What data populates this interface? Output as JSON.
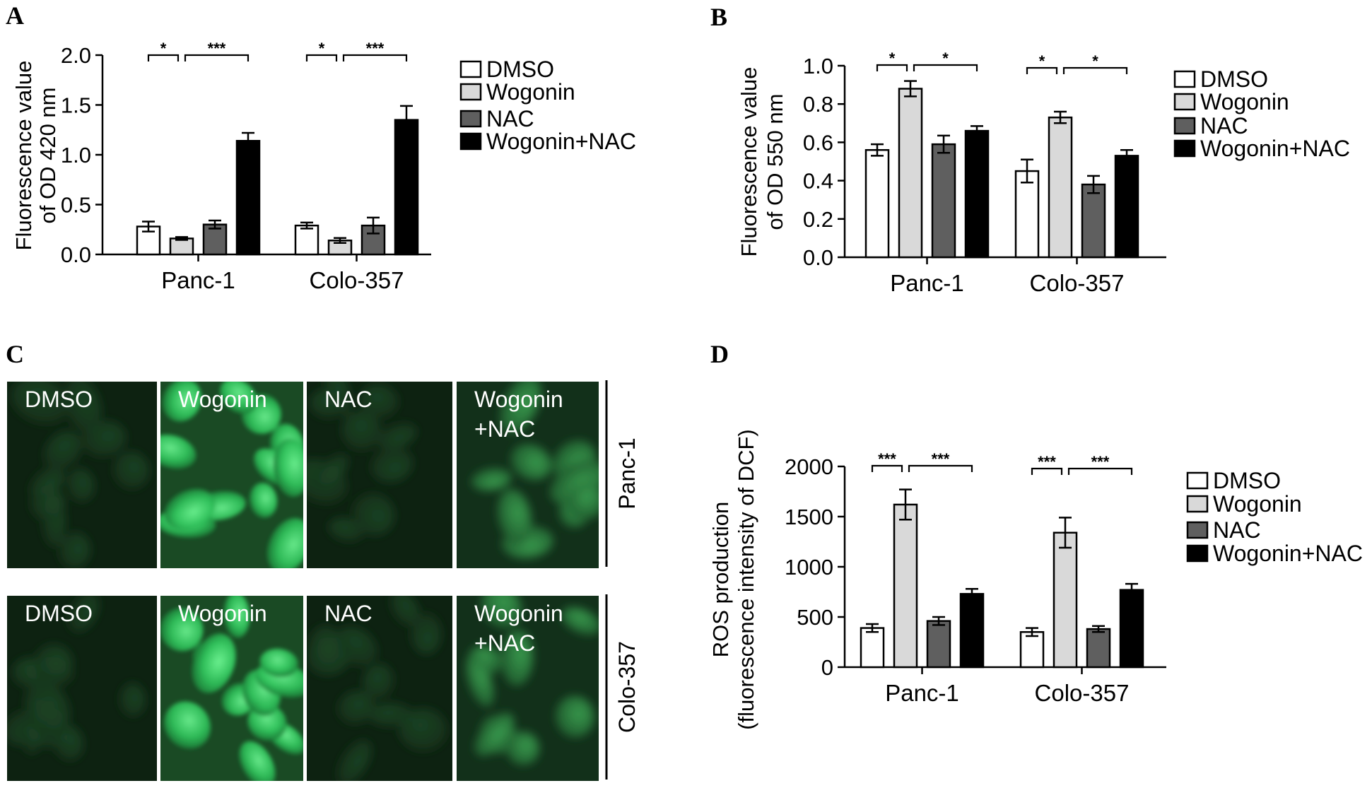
{
  "panels": {
    "a": "A",
    "b": "B",
    "c": "C",
    "d": "D"
  },
  "colors": {
    "DMSO": "#ffffff",
    "Wogonin": "#d9d9d9",
    "NAC": "#5f5f5f",
    "Wogonin+NAC": "#000000",
    "micrograph_dark": "#0c1e0e",
    "micrograph_cell": "#3ecf6a"
  },
  "chart_data": [
    {
      "id": "A",
      "type": "bar",
      "categories": [
        "Panc-1",
        "Colo-357"
      ],
      "series": [
        {
          "name": "DMSO",
          "values": [
            0.28,
            0.29
          ],
          "errors": [
            0.05,
            0.03
          ]
        },
        {
          "name": "Wogonin",
          "values": [
            0.16,
            0.14
          ],
          "errors": [
            0.015,
            0.025
          ]
        },
        {
          "name": "NAC",
          "values": [
            0.3,
            0.29
          ],
          "errors": [
            0.04,
            0.08
          ]
        },
        {
          "name": "Wogonin+NAC",
          "values": [
            1.14,
            1.35
          ],
          "errors": [
            0.08,
            0.14
          ]
        }
      ],
      "ylabel": [
        "Fluorescence value",
        "of OD 420 nm"
      ],
      "ylim": [
        0,
        2.0
      ],
      "yticks": [
        "0.0",
        "0.5",
        "1.0",
        "1.5",
        "2.0"
      ],
      "grid": false,
      "legend_position": "right",
      "significance": [
        {
          "category": 0,
          "from": 0,
          "to": 1,
          "label": "*"
        },
        {
          "category": 0,
          "from": 1,
          "to": 3,
          "label": "***"
        },
        {
          "category": 1,
          "from": 0,
          "to": 1,
          "label": "*"
        },
        {
          "category": 1,
          "from": 1,
          "to": 3,
          "label": "***"
        }
      ]
    },
    {
      "id": "B",
      "type": "bar",
      "categories": [
        "Panc-1",
        "Colo-357"
      ],
      "series": [
        {
          "name": "DMSO",
          "values": [
            0.56,
            0.45
          ],
          "errors": [
            0.03,
            0.06
          ]
        },
        {
          "name": "Wogonin",
          "values": [
            0.88,
            0.73
          ],
          "errors": [
            0.04,
            0.03
          ]
        },
        {
          "name": "NAC",
          "values": [
            0.59,
            0.38
          ],
          "errors": [
            0.045,
            0.045
          ]
        },
        {
          "name": "Wogonin+NAC",
          "values": [
            0.66,
            0.53
          ],
          "errors": [
            0.025,
            0.03
          ]
        }
      ],
      "ylabel": [
        "Fluorescence value",
        "of OD 550 nm"
      ],
      "ylim": [
        0,
        1.0
      ],
      "yticks": [
        "0.0",
        "0.2",
        "0.4",
        "0.6",
        "0.8",
        "1.0"
      ],
      "grid": false,
      "legend_position": "right",
      "significance": [
        {
          "category": 0,
          "from": 0,
          "to": 1,
          "label": "*"
        },
        {
          "category": 0,
          "from": 1,
          "to": 3,
          "label": "*"
        },
        {
          "category": 1,
          "from": 0,
          "to": 1,
          "label": "*"
        },
        {
          "category": 1,
          "from": 1,
          "to": 3,
          "label": "*"
        }
      ]
    },
    {
      "id": "D",
      "type": "bar",
      "categories": [
        "Panc-1",
        "Colo-357"
      ],
      "series": [
        {
          "name": "DMSO",
          "values": [
            390,
            350
          ],
          "errors": [
            40,
            40
          ]
        },
        {
          "name": "Wogonin",
          "values": [
            1620,
            1340
          ],
          "errors": [
            150,
            150
          ]
        },
        {
          "name": "NAC",
          "values": [
            460,
            380
          ],
          "errors": [
            40,
            30
          ]
        },
        {
          "name": "Wogonin+NAC",
          "values": [
            730,
            770
          ],
          "errors": [
            50,
            60
          ]
        }
      ],
      "ylabel": [
        "ROS production",
        "(fluorescence intensity of DCF)"
      ],
      "ylim": [
        0,
        2000
      ],
      "yticks": [
        "0",
        "500",
        "1000",
        "1500",
        "2000"
      ],
      "grid": false,
      "legend_position": "right",
      "significance": [
        {
          "category": 0,
          "from": 0,
          "to": 1,
          "label": "***"
        },
        {
          "category": 0,
          "from": 1,
          "to": 3,
          "label": "***"
        },
        {
          "category": 1,
          "from": 0,
          "to": 1,
          "label": "***"
        },
        {
          "category": 1,
          "from": 1,
          "to": 3,
          "label": "***"
        }
      ]
    }
  ],
  "micrographs": {
    "rows": [
      {
        "cell_line": "Panc-1",
        "tiles": [
          {
            "label": [
              "DMSO"
            ],
            "brightness": "dim"
          },
          {
            "label": [
              "Wogonin"
            ],
            "brightness": "bright"
          },
          {
            "label": [
              "NAC"
            ],
            "brightness": "dim"
          },
          {
            "label": [
              "Wogonin",
              "+NAC"
            ],
            "brightness": "medium"
          }
        ]
      },
      {
        "cell_line": "Colo-357",
        "tiles": [
          {
            "label": [
              "DMSO"
            ],
            "brightness": "dim"
          },
          {
            "label": [
              "Wogonin"
            ],
            "brightness": "bright"
          },
          {
            "label": [
              "NAC"
            ],
            "brightness": "dim"
          },
          {
            "label": [
              "Wogonin",
              "+NAC"
            ],
            "brightness": "medium"
          }
        ]
      }
    ]
  }
}
